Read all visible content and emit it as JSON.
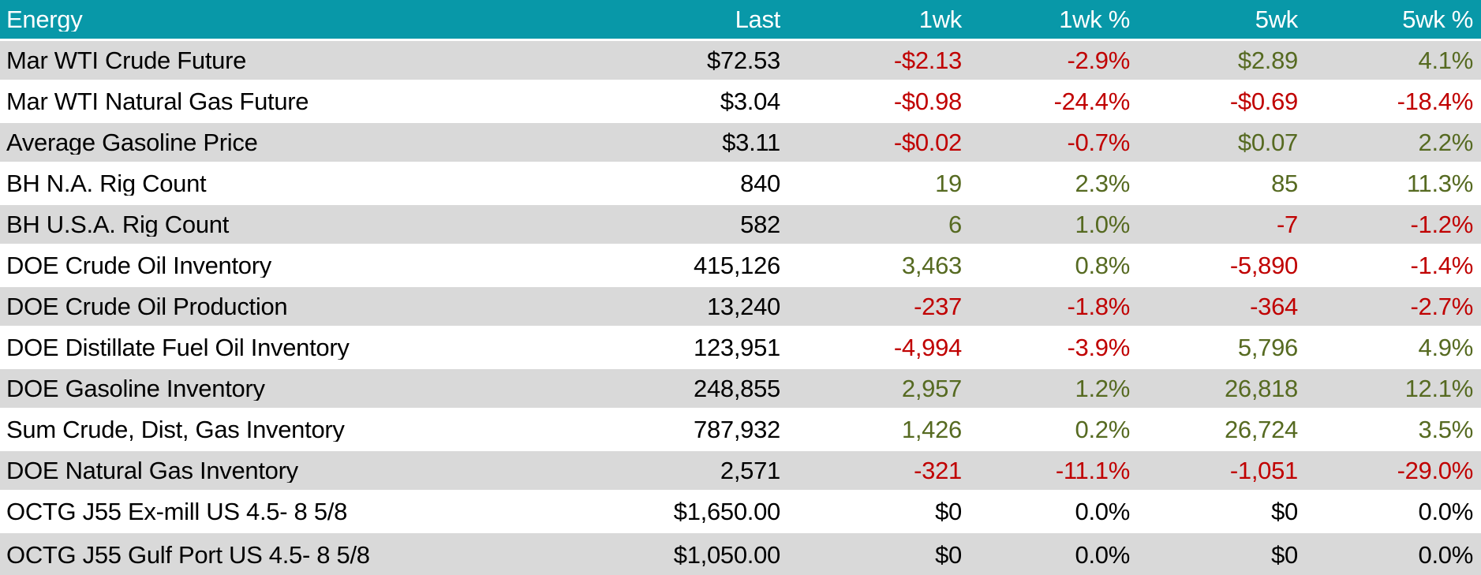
{
  "colors": {
    "header_bg": "#0898A8",
    "header_text": "#FFFFFF",
    "row_stripe_bg": "#D9D9D9",
    "row_plain_bg": "#FFFFFF",
    "positive_text": "#566A21",
    "negative_text": "#C00000",
    "neutral_text": "#000000"
  },
  "table": {
    "title_column_label": "Energy",
    "columns": [
      {
        "key": "name",
        "label": "Energy",
        "align": "left"
      },
      {
        "key": "last",
        "label": "Last",
        "align": "right"
      },
      {
        "key": "wk1",
        "label": "1wk",
        "align": "right"
      },
      {
        "key": "wk1p",
        "label": "1wk %",
        "align": "right"
      },
      {
        "key": "wk5",
        "label": "5wk",
        "align": "right"
      },
      {
        "key": "wk5p",
        "label": "5wk %",
        "align": "right"
      }
    ],
    "rows": [
      {
        "name": "Mar WTI Crude Future",
        "cells": [
          {
            "t": "$72.53",
            "tone": "neutral"
          },
          {
            "t": "-$2.13",
            "tone": "neg"
          },
          {
            "t": "-2.9%",
            "tone": "neg"
          },
          {
            "t": "$2.89",
            "tone": "pos"
          },
          {
            "t": "4.1%",
            "tone": "pos"
          }
        ]
      },
      {
        "name": "Mar WTI Natural Gas Future",
        "cells": [
          {
            "t": "$3.04",
            "tone": "neutral"
          },
          {
            "t": "-$0.98",
            "tone": "neg"
          },
          {
            "t": "-24.4%",
            "tone": "neg"
          },
          {
            "t": "-$0.69",
            "tone": "neg"
          },
          {
            "t": "-18.4%",
            "tone": "neg"
          }
        ]
      },
      {
        "name": "Average Gasoline Price",
        "cells": [
          {
            "t": "$3.11",
            "tone": "neutral"
          },
          {
            "t": "-$0.02",
            "tone": "neg"
          },
          {
            "t": "-0.7%",
            "tone": "neg"
          },
          {
            "t": "$0.07",
            "tone": "pos"
          },
          {
            "t": "2.2%",
            "tone": "pos"
          }
        ]
      },
      {
        "name": "BH N.A. Rig Count",
        "cells": [
          {
            "t": "840",
            "tone": "neutral"
          },
          {
            "t": "19",
            "tone": "pos"
          },
          {
            "t": "2.3%",
            "tone": "pos"
          },
          {
            "t": "85",
            "tone": "pos"
          },
          {
            "t": "11.3%",
            "tone": "pos"
          }
        ]
      },
      {
        "name": "BH U.S.A. Rig Count",
        "cells": [
          {
            "t": "582",
            "tone": "neutral"
          },
          {
            "t": "6",
            "tone": "pos"
          },
          {
            "t": "1.0%",
            "tone": "pos"
          },
          {
            "t": "-7",
            "tone": "neg"
          },
          {
            "t": "-1.2%",
            "tone": "neg"
          }
        ]
      },
      {
        "name": "DOE Crude Oil Inventory",
        "cells": [
          {
            "t": "415,126",
            "tone": "neutral"
          },
          {
            "t": "3,463",
            "tone": "pos"
          },
          {
            "t": "0.8%",
            "tone": "pos"
          },
          {
            "t": "-5,890",
            "tone": "neg"
          },
          {
            "t": "-1.4%",
            "tone": "neg"
          }
        ]
      },
      {
        "name": "DOE Crude Oil Production",
        "cells": [
          {
            "t": "13,240",
            "tone": "neutral"
          },
          {
            "t": "-237",
            "tone": "neg"
          },
          {
            "t": "-1.8%",
            "tone": "neg"
          },
          {
            "t": "-364",
            "tone": "neg"
          },
          {
            "t": "-2.7%",
            "tone": "neg"
          }
        ]
      },
      {
        "name": "DOE Distillate Fuel Oil Inventory",
        "cells": [
          {
            "t": "123,951",
            "tone": "neutral"
          },
          {
            "t": "-4,994",
            "tone": "neg"
          },
          {
            "t": "-3.9%",
            "tone": "neg"
          },
          {
            "t": "5,796",
            "tone": "pos"
          },
          {
            "t": "4.9%",
            "tone": "pos"
          }
        ]
      },
      {
        "name": "DOE Gasoline Inventory",
        "cells": [
          {
            "t": "248,855",
            "tone": "neutral"
          },
          {
            "t": "2,957",
            "tone": "pos"
          },
          {
            "t": "1.2%",
            "tone": "pos"
          },
          {
            "t": "26,818",
            "tone": "pos"
          },
          {
            "t": "12.1%",
            "tone": "pos"
          }
        ]
      },
      {
        "name": "Sum Crude, Dist, Gas Inventory",
        "cells": [
          {
            "t": "787,932",
            "tone": "neutral"
          },
          {
            "t": "1,426",
            "tone": "pos"
          },
          {
            "t": "0.2%",
            "tone": "pos"
          },
          {
            "t": "26,724",
            "tone": "pos"
          },
          {
            "t": "3.5%",
            "tone": "pos"
          }
        ]
      },
      {
        "name": "DOE Natural Gas Inventory",
        "cells": [
          {
            "t": "2,571",
            "tone": "neutral"
          },
          {
            "t": "-321",
            "tone": "neg"
          },
          {
            "t": "-11.1%",
            "tone": "neg"
          },
          {
            "t": "-1,051",
            "tone": "neg"
          },
          {
            "t": "-29.0%",
            "tone": "neg"
          }
        ]
      },
      {
        "name": "OCTG J55 Ex-mill US 4.5- 8 5/8",
        "cells": [
          {
            "t": "$1,650.00",
            "tone": "neutral"
          },
          {
            "t": "$0",
            "tone": "neutral"
          },
          {
            "t": "0.0%",
            "tone": "neutral"
          },
          {
            "t": "$0",
            "tone": "neutral"
          },
          {
            "t": "0.0%",
            "tone": "neutral"
          }
        ]
      },
      {
        "name": "OCTG J55 Gulf Port US 4.5- 8 5/8",
        "cells": [
          {
            "t": "$1,050.00",
            "tone": "neutral"
          },
          {
            "t": "$0",
            "tone": "neutral"
          },
          {
            "t": "0.0%",
            "tone": "neutral"
          },
          {
            "t": "$0",
            "tone": "neutral"
          },
          {
            "t": "0.0%",
            "tone": "neutral"
          }
        ]
      }
    ]
  }
}
